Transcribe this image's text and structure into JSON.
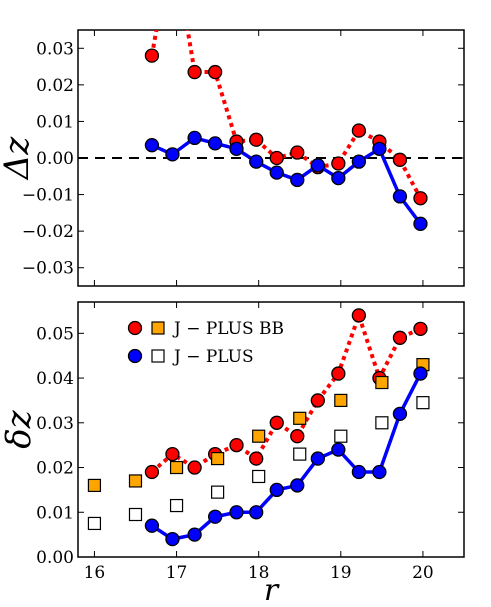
{
  "chart_data": [
    {
      "type": "line",
      "ylabel": "Δz",
      "xlim": [
        15.8,
        20.5
      ],
      "ylim": [
        -0.035,
        0.035
      ],
      "yticks": [
        -0.03,
        -0.02,
        -0.01,
        0.0,
        0.01,
        0.02,
        0.03
      ],
      "ytick_labels": [
        "−0.03",
        "−0.02",
        "−0.01",
        "0.00",
        "0.01",
        "0.02",
        "0.03"
      ],
      "reference_line": {
        "y": 0.0,
        "style": "dashed",
        "color": "#000000"
      },
      "series": [
        {
          "color": "#ff0000",
          "line_style": "dotted",
          "marker": "circle",
          "x": [
            16.7,
            16.95,
            17.22,
            17.47,
            17.73,
            17.97,
            18.22,
            18.47,
            18.72,
            18.97,
            19.22,
            19.47,
            19.72,
            19.97,
            20.25
          ],
          "y": [
            0.028,
            0.06,
            0.0235,
            0.0235,
            0.0045,
            0.005,
            0.0,
            0.0015,
            -0.0025,
            -0.0015,
            0.0075,
            0.0045,
            -0.0005,
            -0.011,
            null
          ]
        },
        {
          "color": "#0000ff",
          "line_style": "solid",
          "marker": "circle",
          "x": [
            16.7,
            16.95,
            17.22,
            17.47,
            17.73,
            17.97,
            18.22,
            18.47,
            18.72,
            18.97,
            19.22,
            19.47,
            19.72,
            19.97,
            20.25
          ],
          "y": [
            0.0035,
            0.001,
            0.0055,
            0.004,
            0.0025,
            -0.001,
            -0.004,
            -0.006,
            -0.002,
            -0.0055,
            -0.001,
            0.0025,
            -0.0105,
            -0.018,
            null
          ]
        }
      ]
    },
    {
      "type": "line",
      "ylabel": "δz",
      "xlabel": "r",
      "xlim": [
        15.8,
        20.5
      ],
      "ylim": [
        0.0,
        0.057
      ],
      "xticks": [
        16,
        17,
        18,
        19,
        20
      ],
      "xtick_labels": [
        "16",
        "17",
        "18",
        "19",
        "20"
      ],
      "yticks": [
        0.0,
        0.01,
        0.02,
        0.03,
        0.04,
        0.05
      ],
      "ytick_labels": [
        "0.00",
        "0.01",
        "0.02",
        "0.03",
        "0.04",
        "0.05"
      ],
      "legend": {
        "position": "top-left",
        "entries": [
          {
            "label": "J − PLUS BB",
            "markers": [
              {
                "shape": "circle",
                "color": "#ff0000"
              },
              {
                "shape": "square",
                "color": "#ffa500"
              }
            ]
          },
          {
            "label": "J − PLUS",
            "markers": [
              {
                "shape": "circle",
                "color": "#0000ff"
              },
              {
                "shape": "square",
                "color": "#ffffff"
              }
            ]
          }
        ]
      },
      "series": [
        {
          "color": "#ff0000",
          "line_style": "dotted",
          "marker": "circle",
          "x": [
            16.7,
            16.95,
            17.22,
            17.47,
            17.73,
            17.97,
            18.22,
            18.47,
            18.72,
            18.97,
            19.22,
            19.47,
            19.72,
            19.97,
            20.25
          ],
          "y": [
            0.019,
            0.023,
            0.02,
            0.023,
            0.025,
            0.022,
            0.03,
            0.027,
            0.035,
            0.041,
            0.054,
            0.04,
            0.049,
            0.051,
            null
          ]
        },
        {
          "color": "#ffa500",
          "line_style": "none",
          "marker": "square",
          "x": [
            16.0,
            16.5,
            17.0,
            17.5,
            18.0,
            18.5,
            19.0,
            19.5,
            20.0
          ],
          "y": [
            0.016,
            0.017,
            0.02,
            0.022,
            0.027,
            0.031,
            0.035,
            0.039,
            0.043
          ]
        },
        {
          "color": "#0000ff",
          "line_style": "solid",
          "marker": "circle",
          "x": [
            16.7,
            16.95,
            17.22,
            17.47,
            17.73,
            17.97,
            18.22,
            18.47,
            18.72,
            18.97,
            19.22,
            19.47,
            19.72,
            19.97,
            20.25
          ],
          "y": [
            0.007,
            0.004,
            0.005,
            0.009,
            0.01,
            0.01,
            0.015,
            0.016,
            0.022,
            0.024,
            0.019,
            0.019,
            0.032,
            0.041,
            null
          ]
        },
        {
          "color": "#ffffff",
          "line_style": "none",
          "marker": "square",
          "x": [
            16.0,
            16.5,
            17.0,
            17.5,
            18.0,
            18.5,
            19.0,
            19.5,
            20.0
          ],
          "y": [
            0.0075,
            0.0095,
            0.0115,
            0.0145,
            0.018,
            0.023,
            0.027,
            0.03,
            0.0345
          ]
        }
      ]
    }
  ]
}
